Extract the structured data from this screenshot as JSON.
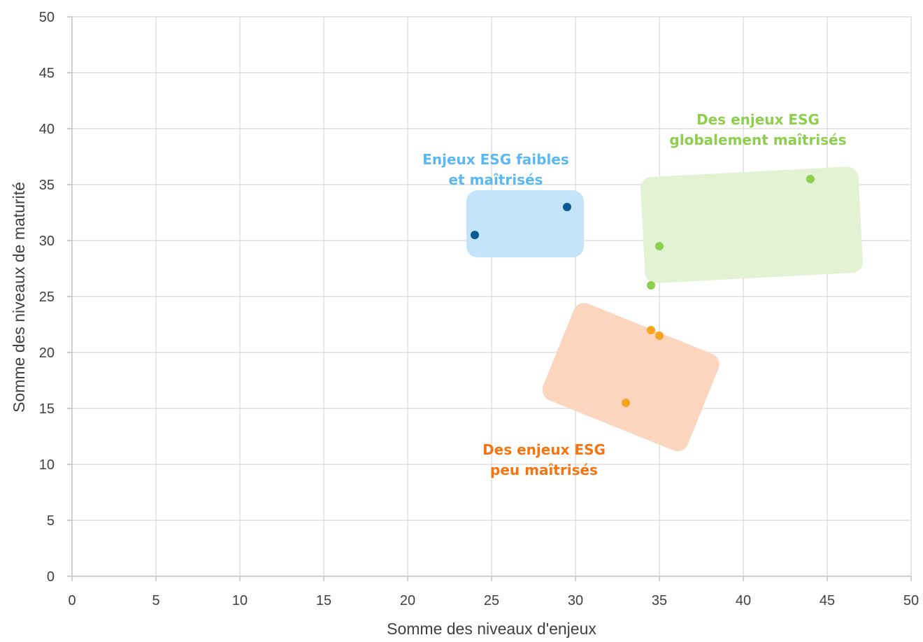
{
  "chart_data": {
    "type": "scatter",
    "xlabel": "Somme des niveaux d'enjeux",
    "ylabel": "Somme des niveaux de maturité",
    "xlim": [
      0,
      50
    ],
    "ylim": [
      0,
      50
    ],
    "xticks": [
      "0",
      "5",
      "10",
      "15",
      "20",
      "25",
      "30",
      "35",
      "40",
      "45",
      "50"
    ],
    "yticks": [
      "0",
      "5",
      "10",
      "15",
      "20",
      "25",
      "30",
      "35",
      "40",
      "45",
      "50"
    ],
    "grid": true,
    "series": [
      {
        "color": "#0b5a96",
        "points": [
          [
            24,
            30.5
          ],
          [
            29.5,
            33
          ]
        ]
      },
      {
        "color": "#8ccf4d",
        "points": [
          [
            34.5,
            26
          ],
          [
            35,
            29.5
          ],
          [
            44,
            35.5
          ]
        ]
      },
      {
        "color": "#f7a41d",
        "points": [
          [
            34.5,
            22
          ],
          [
            35,
            21.5
          ],
          [
            33,
            15.5
          ]
        ]
      }
    ],
    "annotations": [
      {
        "lines": [
          "Enjeux ESG faibles",
          "et maîtrisés"
        ],
        "color": "#5bb8f2"
      },
      {
        "lines": [
          "Des enjeux ESG",
          "globalement maîtrisés"
        ],
        "color": "#8ccf4d"
      },
      {
        "lines": [
          "Des enjeux ESG",
          "peu maîtrisés"
        ],
        "color": "#f7730e"
      }
    ],
    "zones": [
      {
        "fill": "#c3e4fa"
      },
      {
        "fill": "#e2f2d3"
      },
      {
        "fill": "#fbd5bd"
      }
    ]
  }
}
